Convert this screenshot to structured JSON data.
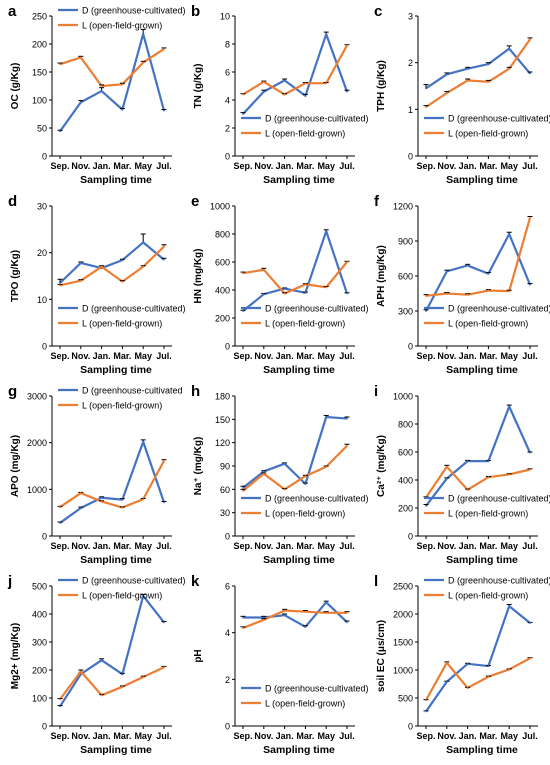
{
  "figure": {
    "xlabel_common": "Sampling time",
    "categories": [
      "Sep.",
      "Nov.",
      "Jan.",
      "Mar.",
      "May",
      "Jul."
    ],
    "colors": {
      "D": "#4472C4",
      "L": "#ED7D31",
      "axis": "#000000",
      "errorbar": "#000000"
    }
  },
  "chart_data": [
    {
      "type": "line",
      "panel_label": "a",
      "ylabel": "OC (g/Kg)",
      "xlabel": "Sampling time",
      "categories": [
        "Sep.",
        "Nov.",
        "Jan.",
        "Mar.",
        "May",
        "Jul."
      ],
      "ylim": [
        0,
        250
      ],
      "yticks": [
        0,
        50,
        100,
        150,
        200,
        250
      ],
      "legend_position": "top",
      "series": [
        {
          "name": "D (greenhouse-cultivated)",
          "values": [
            44,
            96,
            116,
            83,
            218,
            81
          ],
          "errors": [
            2,
            3,
            6,
            2,
            8,
            2
          ]
        },
        {
          "name": "L (open-field-grown)",
          "values": [
            164,
            176,
            125,
            128,
            167,
            191
          ],
          "errors": [
            2,
            2,
            2,
            2,
            2,
            2
          ]
        }
      ]
    },
    {
      "type": "line",
      "panel_label": "b",
      "ylabel": "TN (g/Kg)",
      "xlabel": "Sampling time",
      "categories": [
        "Sep.",
        "Nov.",
        "Jan.",
        "Mar.",
        "May",
        "Jul."
      ],
      "ylim": [
        0,
        10
      ],
      "yticks": [
        0,
        2,
        4,
        6,
        8,
        10
      ],
      "legend_position": "bottom",
      "series": [
        {
          "name": "D (greenhouse-cultivated)",
          "values": [
            3.0,
            4.6,
            5.4,
            4.3,
            8.7,
            4.6
          ],
          "errors": [
            0.1,
            0.1,
            0.1,
            0.1,
            0.15,
            0.1
          ]
        },
        {
          "name": "L (open-field-grown)",
          "values": [
            4.4,
            5.3,
            4.4,
            5.2,
            5.2,
            7.9
          ],
          "errors": [
            0.05,
            0.05,
            0.05,
            0.05,
            0.05,
            0.05
          ]
        }
      ]
    },
    {
      "type": "line",
      "panel_label": "c",
      "ylabel": "TPH (g/Kg)",
      "xlabel": "Sampling time",
      "categories": [
        "Sep.",
        "Nov.",
        "Jan.",
        "Mar.",
        "May",
        "Jul."
      ],
      "ylim": [
        0,
        3
      ],
      "yticks": [
        0,
        1,
        2,
        3
      ],
      "legend_position": "bottom",
      "series": [
        {
          "name": "D (greenhouse-cultivated)",
          "values": [
            1.45,
            1.75,
            1.87,
            1.97,
            2.3,
            1.77
          ],
          "errors": [
            0.08,
            0.03,
            0.03,
            0.03,
            0.06,
            0.03
          ]
        },
        {
          "name": "L (open-field-grown)",
          "values": [
            1.05,
            1.35,
            1.62,
            1.59,
            1.87,
            2.5
          ],
          "errors": [
            0.03,
            0.03,
            0.03,
            0.03,
            0.03,
            0.03
          ]
        }
      ]
    },
    {
      "type": "line",
      "panel_label": "d",
      "ylabel": "TPO (g/Kg)",
      "xlabel": "Sampling time",
      "categories": [
        "Sep.",
        "Nov.",
        "Jan.",
        "Mar.",
        "May",
        "Jul."
      ],
      "ylim": [
        0,
        30
      ],
      "yticks": [
        0,
        10,
        20,
        30
      ],
      "legend_position": "bottom",
      "series": [
        {
          "name": "D (greenhouse-cultivated)",
          "values": [
            13.5,
            17.8,
            16.7,
            18.4,
            22.2,
            18.5
          ],
          "errors": [
            0.8,
            0.2,
            0.2,
            0.2,
            1.8,
            0.3
          ]
        },
        {
          "name": "L (open-field-grown)",
          "values": [
            13.0,
            14.0,
            17.0,
            13.8,
            17.0,
            21.3
          ],
          "errors": [
            0.2,
            0.2,
            0.2,
            0.2,
            0.2,
            0.4
          ]
        }
      ]
    },
    {
      "type": "line",
      "panel_label": "e",
      "ylabel": "HN (mg/Kg)",
      "xlabel": "Sampling time",
      "categories": [
        "Sep.",
        "Nov.",
        "Jan.",
        "Mar.",
        "May",
        "Jul."
      ],
      "ylim": [
        0,
        1000
      ],
      "yticks": [
        0,
        200,
        400,
        600,
        800,
        1000
      ],
      "legend_position": "bottom",
      "series": [
        {
          "name": "D (greenhouse-cultivated)",
          "values": [
            250,
            370,
            410,
            380,
            820,
            375
          ],
          "errors": [
            5,
            5,
            5,
            5,
            10,
            5
          ]
        },
        {
          "name": "L (open-field-grown)",
          "values": [
            520,
            545,
            375,
            440,
            420,
            600
          ],
          "errors": [
            8,
            10,
            5,
            5,
            5,
            5
          ]
        }
      ]
    },
    {
      "type": "line",
      "panel_label": "f",
      "ylabel": "APH (mg/Kg)",
      "xlabel": "Sampling time",
      "categories": [
        "Sep.",
        "Nov.",
        "Jan.",
        "Mar.",
        "May",
        "Jul."
      ],
      "ylim": [
        0,
        1200
      ],
      "yticks": [
        0,
        300,
        600,
        900,
        1200
      ],
      "legend_position": "bottom",
      "series": [
        {
          "name": "D (greenhouse-cultivated)",
          "values": [
            300,
            640,
            690,
            620,
            960,
            525
          ],
          "errors": [
            10,
            10,
            10,
            10,
            15,
            10
          ]
        },
        {
          "name": "L (open-field-grown)",
          "values": [
            430,
            450,
            440,
            475,
            470,
            1100
          ],
          "errors": [
            10,
            8,
            8,
            8,
            8,
            10
          ]
        }
      ]
    },
    {
      "type": "line",
      "panel_label": "g",
      "ylabel": "APO (mg/Kg)",
      "xlabel": "Sampling time",
      "categories": [
        "Sep.",
        "Nov.",
        "Jan.",
        "Mar.",
        "May",
        "Jul."
      ],
      "ylim": [
        0,
        3000
      ],
      "yticks": [
        0,
        1000,
        2000,
        3000
      ],
      "legend_position": "top",
      "series": [
        {
          "name": "D (greenhouse-cultivated",
          "values": [
            280,
            600,
            820,
            780,
            2020,
            720
          ],
          "errors": [
            20,
            20,
            20,
            20,
            40,
            20
          ]
        },
        {
          "name": "L (open-field-grown)",
          "values": [
            620,
            920,
            740,
            610,
            790,
            1610
          ],
          "errors": [
            15,
            15,
            15,
            15,
            15,
            25
          ]
        }
      ]
    },
    {
      "type": "line",
      "panel_label": "h",
      "ylabel": "Na⁺ (mg/Kg)",
      "xlabel": "Sampling time",
      "categories": [
        "Sep.",
        "Nov.",
        "Jan.",
        "Mar.",
        "May",
        "Jul."
      ],
      "ylim": [
        0,
        180
      ],
      "yticks": [
        0,
        30,
        60,
        90,
        120,
        150,
        180
      ],
      "legend_position": "bottom",
      "series": [
        {
          "name": "D (greenhouse-cultivated)",
          "values": [
            62,
            83,
            93,
            67,
            153,
            151
          ],
          "errors": [
            2,
            1,
            1,
            1,
            2,
            2
          ]
        },
        {
          "name": "L (open-field-grown)",
          "values": [
            58,
            80,
            60,
            77,
            89,
            116
          ],
          "errors": [
            2,
            1,
            1,
            1,
            1,
            2
          ]
        }
      ]
    },
    {
      "type": "line",
      "panel_label": "i",
      "ylabel": "Ca²⁺ (mg/Kg)",
      "xlabel": "Sampling time",
      "categories": [
        "Sep.",
        "Nov.",
        "Jan.",
        "Mar.",
        "May",
        "Jul."
      ],
      "ylim": [
        0,
        1000
      ],
      "yticks": [
        0,
        200,
        400,
        600,
        800,
        1000
      ],
      "legend_position": "bottom",
      "series": [
        {
          "name": "D (greenhouse-cultivated)",
          "values": [
            215,
            410,
            535,
            535,
            925,
            595
          ],
          "errors": [
            10,
            5,
            5,
            5,
            10,
            5
          ]
        },
        {
          "name": "L (open-field-grown)",
          "values": [
            275,
            495,
            330,
            420,
            440,
            475
          ],
          "errors": [
            5,
            10,
            5,
            5,
            5,
            5
          ]
        }
      ]
    },
    {
      "type": "line",
      "panel_label": "j",
      "ylabel": "Mg2+ (mg/Kg)",
      "xlabel": "Sampling time",
      "categories": [
        "Sep.",
        "Nov.",
        "Jan.",
        "Mar.",
        "May",
        "Jul."
      ],
      "ylim": [
        0,
        500
      ],
      "yticks": [
        0,
        100,
        200,
        300,
        400,
        500
      ],
      "legend_position": "top",
      "series": [
        {
          "name": "D (greenhouse-cultivated)",
          "values": [
            70,
            185,
            235,
            185,
            465,
            370
          ],
          "errors": [
            3,
            5,
            5,
            3,
            5,
            3
          ]
        },
        {
          "name": "L (open-field-grown)",
          "values": [
            95,
            195,
            110,
            140,
            175,
            210
          ],
          "errors": [
            3,
            5,
            3,
            3,
            3,
            3
          ]
        }
      ]
    },
    {
      "type": "line",
      "panel_label": "k",
      "ylabel": "pH",
      "xlabel": "Sampling time",
      "categories": [
        "Sep.",
        "Nov.",
        "Jan.",
        "Mar.",
        "May",
        "Jul."
      ],
      "ylim": [
        0,
        6
      ],
      "yticks": [
        0,
        2,
        4,
        6
      ],
      "legend_position": "bottom",
      "series": [
        {
          "name": "D (greenhouse-cultivated)",
          "values": [
            4.65,
            4.65,
            4.75,
            4.25,
            5.3,
            4.45
          ],
          "errors": [
            0.05,
            0.05,
            0.05,
            0.05,
            0.05,
            0.05
          ]
        },
        {
          "name": "L (open-field-grown)",
          "values": [
            4.2,
            4.55,
            4.95,
            4.9,
            4.85,
            4.85
          ],
          "errors": [
            0.05,
            0.05,
            0.05,
            0.05,
            0.05,
            0.05
          ]
        }
      ]
    },
    {
      "type": "line",
      "panel_label": "l",
      "ylabel": "soil EC (μs/cm)",
      "xlabel": "Sampling time",
      "categories": [
        "Sep.",
        "Nov.",
        "Jan.",
        "Mar.",
        "May",
        "Jul."
      ],
      "ylim": [
        0,
        2500
      ],
      "yticks": [
        0,
        500,
        1000,
        1500,
        2000,
        2500
      ],
      "legend_position": "top",
      "series": [
        {
          "name": "D (greenhouse-cultivated)",
          "values": [
            260,
            790,
            1110,
            1070,
            2140,
            1840
          ],
          "errors": [
            10,
            10,
            10,
            10,
            30,
            10
          ]
        },
        {
          "name": "L (open-field-grown)",
          "values": [
            460,
            1130,
            680,
            880,
            1010,
            1210
          ],
          "errors": [
            10,
            15,
            10,
            10,
            10,
            10
          ]
        }
      ]
    }
  ]
}
